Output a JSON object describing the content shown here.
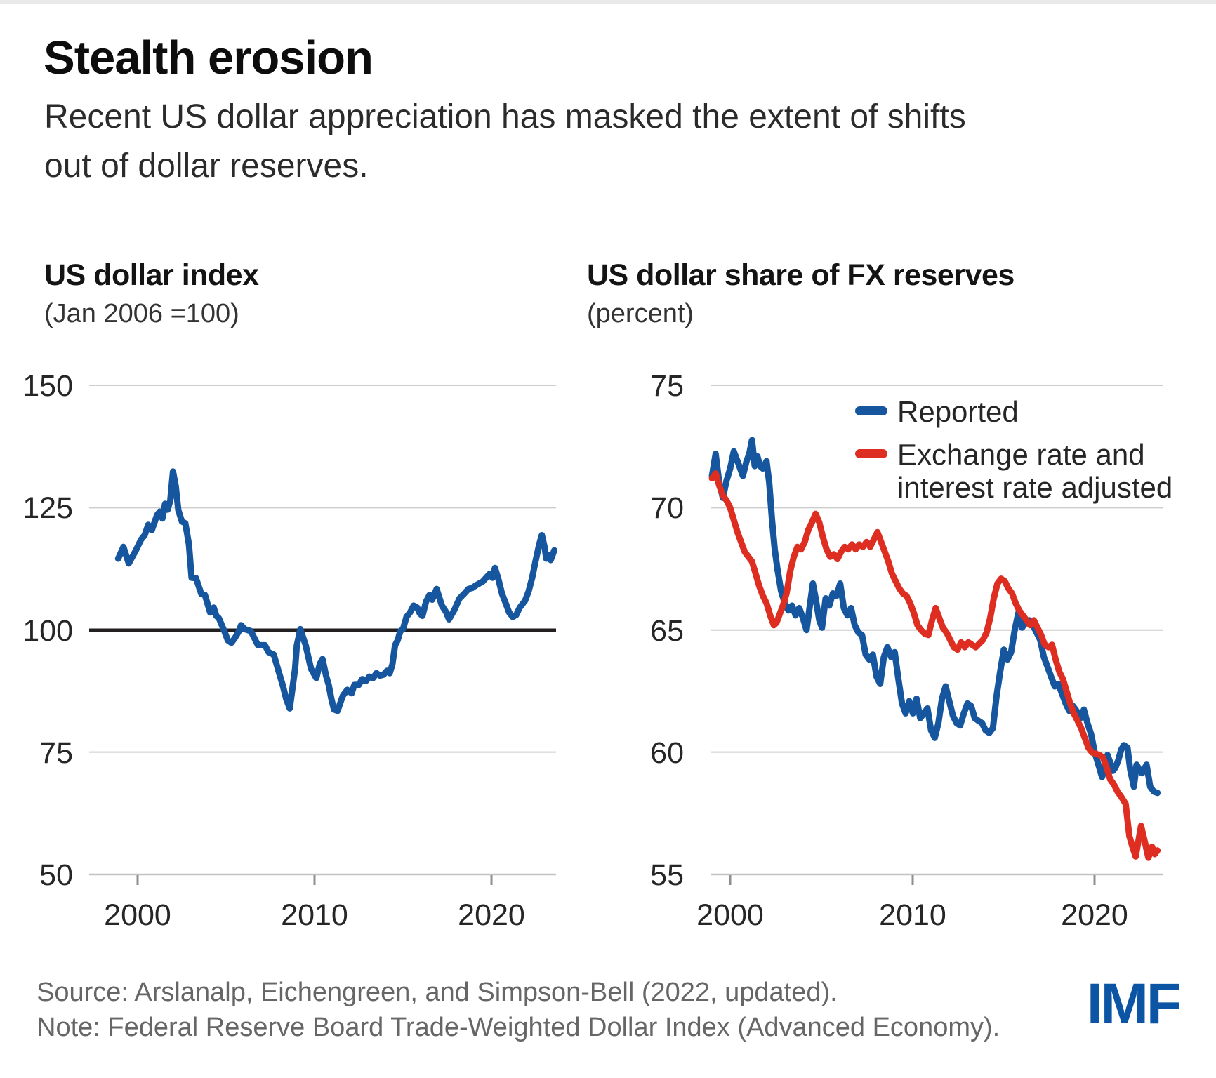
{
  "header": {
    "title": "Stealth erosion",
    "subtitle": "Recent US dollar appreciation has masked the extent of shifts\nout of dollar reserves."
  },
  "footer": {
    "source": "Source: Arslanalp, Eichengreen, and Simpson-Bell (2022, updated).",
    "note": "Note: Federal Reserve Board Trade-Weighted Dollar Index (Advanced Economy).",
    "logo": "IMF"
  },
  "colors": {
    "line_blue": "#15569E",
    "line_red": "#DE2E21",
    "imf_blue": "#0B55A4",
    "gridline": "#CDCDCD",
    "zero_line": "#231F20"
  },
  "chart_data": [
    {
      "type": "line",
      "title": "US dollar index",
      "subtitle": "(Jan 2006 =100)",
      "xlabel": "",
      "ylabel": "",
      "grid": true,
      "xlim": [
        1998.8,
        2023.8
      ],
      "ylim": [
        50,
        150
      ],
      "x_ticks": [
        2000,
        2010,
        2020
      ],
      "y_ticks": [
        150,
        125,
        100,
        75,
        50
      ],
      "reference_line": 100,
      "legend_position": "none",
      "series": [
        {
          "name": "US dollar index (Jan 2006 =100)",
          "color": "#15569E",
          "x": [
            1998.9,
            1999.2,
            1999.5,
            1999.9,
            2000.2,
            2000.4,
            2000.6,
            2000.8,
            2001.1,
            2001.25,
            2001.4,
            2001.55,
            2001.7,
            2001.85,
            2002.0,
            2002.15,
            2002.3,
            2002.5,
            2002.7,
            2002.9,
            2003.05,
            2003.3,
            2003.6,
            2003.8,
            2004.1,
            2004.3,
            2004.45,
            2004.6,
            2004.9,
            2005.1,
            2005.3,
            2005.5,
            2005.7,
            2005.85,
            2006.05,
            2006.4,
            2006.8,
            2007.2,
            2007.4,
            2007.7,
            2008.0,
            2008.2,
            2008.4,
            2008.6,
            2008.9,
            2009.0,
            2009.2,
            2009.5,
            2009.8,
            2010.1,
            2010.3,
            2010.45,
            2010.65,
            2010.8,
            2010.95,
            2011.1,
            2011.3,
            2011.6,
            2011.85,
            2012.1,
            2012.25,
            2012.5,
            2012.7,
            2012.9,
            2013.1,
            2013.3,
            2013.5,
            2013.7,
            2013.9,
            2014.1,
            2014.25,
            2014.4,
            2014.55,
            2014.7,
            2014.85,
            2015.0,
            2015.2,
            2015.4,
            2015.6,
            2015.8,
            2015.95,
            2016.1,
            2016.3,
            2016.5,
            2016.65,
            2016.9,
            2017.2,
            2017.45,
            2017.6,
            2017.9,
            2018.2,
            2018.45,
            2018.7,
            2018.9,
            2019.2,
            2019.5,
            2019.7,
            2019.9,
            2020.05,
            2020.2,
            2020.4,
            2020.6,
            2020.8,
            2021.0,
            2021.2,
            2021.4,
            2021.6,
            2021.9,
            2022.1,
            2022.3,
            2022.5,
            2022.7,
            2022.85,
            2023.0,
            2023.1,
            2023.25,
            2023.35,
            2023.55
          ],
          "values": [
            114.6,
            117.0,
            113.6,
            116.3,
            118.5,
            119.4,
            121.5,
            120.4,
            123.5,
            124.2,
            122.8,
            125.8,
            124.6,
            126.5,
            132.4,
            129.5,
            124.5,
            122.2,
            121.8,
            117.5,
            110.7,
            110.6,
            107.4,
            107.2,
            103.6,
            104.6,
            102.9,
            102.4,
            99.8,
            97.9,
            97.4,
            98.4,
            99.6,
            101.0,
            100.2,
            99.8,
            96.9,
            96.9,
            95.5,
            95.0,
            91.2,
            88.8,
            85.9,
            84.0,
            92.1,
            96.9,
            100.2,
            96.9,
            92.1,
            90.2,
            93.1,
            94.1,
            90.7,
            88.8,
            86.0,
            83.8,
            83.5,
            86.6,
            87.8,
            87.1,
            88.8,
            88.8,
            90.0,
            89.6,
            90.5,
            90.2,
            91.2,
            90.7,
            90.9,
            91.7,
            91.2,
            93.0,
            96.9,
            97.9,
            99.8,
            100.2,
            102.7,
            103.6,
            105.0,
            104.6,
            103.4,
            102.9,
            105.8,
            107.2,
            106.2,
            108.4,
            105.0,
            103.6,
            102.2,
            104.1,
            106.5,
            107.4,
            108.4,
            108.6,
            109.3,
            109.9,
            110.7,
            111.5,
            110.7,
            112.7,
            110.3,
            107.4,
            105.5,
            103.6,
            102.7,
            103.1,
            104.6,
            106.0,
            107.9,
            110.7,
            114.2,
            117.5,
            119.4,
            117.0,
            114.6,
            115.3,
            114.3,
            116.3
          ]
        }
      ]
    },
    {
      "type": "line",
      "title": "US dollar share of FX reserves",
      "subtitle": "(percent)",
      "xlabel": "",
      "ylabel": "",
      "grid": true,
      "xlim": [
        1999.0,
        2023.8
      ],
      "ylim": [
        55,
        75
      ],
      "x_ticks": [
        2000,
        2010,
        2020
      ],
      "y_ticks": [
        75,
        70,
        65,
        60,
        55
      ],
      "legend_position": "top-right-inside",
      "series": [
        {
          "name": "Reported",
          "color": "#15569E",
          "x": [
            1999.0,
            1999.2,
            1999.4,
            1999.6,
            1999.8,
            2000.0,
            2000.2,
            2000.45,
            2000.7,
            2000.9,
            2001.05,
            2001.2,
            2001.35,
            2001.5,
            2001.65,
            2001.8,
            2002.0,
            2002.15,
            2002.3,
            2002.45,
            2002.6,
            2002.8,
            2003.0,
            2003.2,
            2003.4,
            2003.6,
            2003.8,
            2004.0,
            2004.2,
            2004.4,
            2004.55,
            2004.7,
            2004.9,
            2005.05,
            2005.25,
            2005.45,
            2005.65,
            2005.85,
            2006.05,
            2006.25,
            2006.45,
            2006.65,
            2006.85,
            2007.05,
            2007.25,
            2007.45,
            2007.65,
            2007.85,
            2008.05,
            2008.25,
            2008.45,
            2008.65,
            2008.85,
            2009.05,
            2009.25,
            2009.45,
            2009.65,
            2009.85,
            2010.05,
            2010.25,
            2010.45,
            2010.65,
            2010.85,
            2011.05,
            2011.25,
            2011.45,
            2011.65,
            2011.85,
            2012.05,
            2012.25,
            2012.45,
            2012.65,
            2012.85,
            2013.05,
            2013.25,
            2013.45,
            2013.65,
            2013.85,
            2014.05,
            2014.25,
            2014.45,
            2014.65,
            2014.85,
            2015.05,
            2015.25,
            2015.45,
            2015.65,
            2015.85,
            2016.05,
            2016.25,
            2016.45,
            2016.65,
            2016.85,
            2017.05,
            2017.25,
            2017.45,
            2017.65,
            2017.85,
            2018.05,
            2018.25,
            2018.45,
            2018.65,
            2018.85,
            2019.05,
            2019.25,
            2019.45,
            2019.65,
            2019.85,
            2020.05,
            2020.25,
            2020.45,
            2020.6,
            2020.75,
            2020.9,
            2021.05,
            2021.2,
            2021.35,
            2021.5,
            2021.65,
            2021.85,
            2022.0,
            2022.2,
            2022.35,
            2022.5,
            2022.65,
            2022.9,
            2023.1,
            2023.3,
            2023.5
          ],
          "values": [
            71.3,
            72.2,
            71.0,
            70.4,
            71.1,
            71.6,
            72.3,
            71.8,
            71.3,
            71.9,
            72.2,
            72.76,
            71.7,
            72.1,
            71.7,
            71.6,
            71.9,
            71.0,
            69.5,
            68.3,
            67.5,
            66.6,
            66.1,
            65.8,
            66.0,
            65.6,
            65.9,
            65.5,
            65.0,
            66.1,
            66.9,
            66.3,
            65.4,
            65.1,
            66.3,
            66.0,
            66.5,
            66.4,
            66.9,
            65.9,
            65.6,
            65.9,
            65.2,
            64.9,
            64.8,
            64.0,
            63.8,
            64.0,
            63.1,
            62.8,
            63.9,
            64.3,
            63.9,
            64.1,
            63.0,
            62.0,
            61.6,
            62.1,
            61.6,
            62.2,
            61.4,
            61.6,
            61.8,
            60.9,
            60.6,
            61.2,
            62.2,
            62.7,
            62.1,
            61.5,
            61.2,
            61.1,
            61.6,
            62.0,
            61.9,
            61.4,
            61.3,
            61.2,
            60.9,
            60.8,
            61.0,
            62.3,
            63.3,
            64.2,
            63.8,
            64.1,
            65.0,
            65.7,
            65.1,
            65.3,
            65.4,
            65.2,
            64.9,
            64.6,
            63.9,
            63.5,
            63.1,
            62.7,
            62.8,
            62.4,
            62.0,
            61.7,
            61.9,
            61.7,
            61.4,
            61.75,
            61.2,
            60.75,
            60.0,
            59.5,
            59.0,
            59.3,
            59.9,
            59.6,
            59.25,
            59.4,
            59.7,
            60.1,
            60.3,
            60.2,
            59.3,
            58.6,
            59.5,
            59.3,
            59.15,
            59.5,
            58.6,
            58.4,
            58.35
          ]
        },
        {
          "name": "Exchange rate and\ninterest rate adjusted",
          "color": "#DE2E21",
          "x": [
            1999.0,
            1999.2,
            1999.4,
            1999.6,
            1999.8,
            2000.0,
            2000.2,
            2000.4,
            2000.6,
            2000.8,
            2001.0,
            2001.2,
            2001.4,
            2001.6,
            2001.8,
            2002.0,
            2002.2,
            2002.4,
            2002.55,
            2002.7,
            2002.9,
            2003.1,
            2003.3,
            2003.5,
            2003.7,
            2003.9,
            2004.1,
            2004.3,
            2004.5,
            2004.7,
            2004.9,
            2005.1,
            2005.3,
            2005.5,
            2005.7,
            2005.9,
            2006.1,
            2006.3,
            2006.5,
            2006.7,
            2006.9,
            2007.1,
            2007.3,
            2007.5,
            2007.7,
            2007.9,
            2008.1,
            2008.3,
            2008.5,
            2008.7,
            2008.9,
            2009.1,
            2009.3,
            2009.5,
            2009.7,
            2009.9,
            2010.1,
            2010.3,
            2010.5,
            2010.7,
            2010.9,
            2011.1,
            2011.3,
            2011.5,
            2011.7,
            2011.9,
            2012.1,
            2012.3,
            2012.5,
            2012.7,
            2012.9,
            2013.1,
            2013.3,
            2013.5,
            2013.7,
            2013.9,
            2014.1,
            2014.3,
            2014.5,
            2014.7,
            2014.9,
            2015.1,
            2015.3,
            2015.5,
            2015.7,
            2015.9,
            2016.1,
            2016.3,
            2016.5,
            2016.7,
            2016.9,
            2017.1,
            2017.3,
            2017.5,
            2017.7,
            2017.9,
            2018.1,
            2018.3,
            2018.5,
            2018.7,
            2018.9,
            2019.1,
            2019.3,
            2019.5,
            2019.7,
            2019.9,
            2020.1,
            2020.3,
            2020.5,
            2020.7,
            2020.9,
            2021.1,
            2021.3,
            2021.5,
            2021.75,
            2021.95,
            2022.1,
            2022.3,
            2022.6,
            2022.85,
            2023.0,
            2023.2,
            2023.35,
            2023.5
          ],
          "values": [
            71.2,
            71.4,
            70.9,
            70.5,
            70.3,
            70.0,
            69.5,
            69.0,
            68.6,
            68.2,
            68.0,
            67.8,
            67.3,
            66.8,
            66.4,
            66.1,
            65.6,
            65.2,
            65.3,
            65.6,
            66.0,
            66.5,
            67.4,
            68.0,
            68.4,
            68.3,
            68.6,
            69.1,
            69.4,
            69.75,
            69.4,
            68.8,
            68.3,
            68.0,
            68.1,
            67.9,
            68.2,
            68.4,
            68.3,
            68.5,
            68.3,
            68.5,
            68.4,
            68.6,
            68.4,
            68.7,
            69.0,
            68.6,
            68.2,
            67.8,
            67.3,
            67.0,
            66.7,
            66.5,
            66.4,
            66.1,
            65.7,
            65.2,
            65.0,
            64.85,
            64.8,
            65.4,
            65.9,
            65.5,
            65.1,
            64.9,
            64.6,
            64.3,
            64.2,
            64.5,
            64.3,
            64.5,
            64.4,
            64.3,
            64.45,
            64.6,
            64.9,
            65.5,
            66.3,
            66.9,
            67.1,
            67.0,
            66.7,
            66.5,
            66.1,
            65.8,
            65.6,
            65.4,
            65.2,
            65.4,
            65.1,
            64.8,
            64.4,
            64.3,
            64.4,
            63.8,
            63.3,
            63.0,
            62.5,
            62.0,
            61.6,
            61.3,
            61.0,
            60.6,
            60.2,
            60.0,
            59.95,
            59.9,
            59.8,
            59.4,
            58.9,
            58.7,
            58.4,
            58.2,
            57.9,
            56.6,
            56.2,
            55.75,
            57.0,
            56.2,
            55.7,
            56.15,
            55.85,
            56.0
          ]
        }
      ]
    }
  ]
}
